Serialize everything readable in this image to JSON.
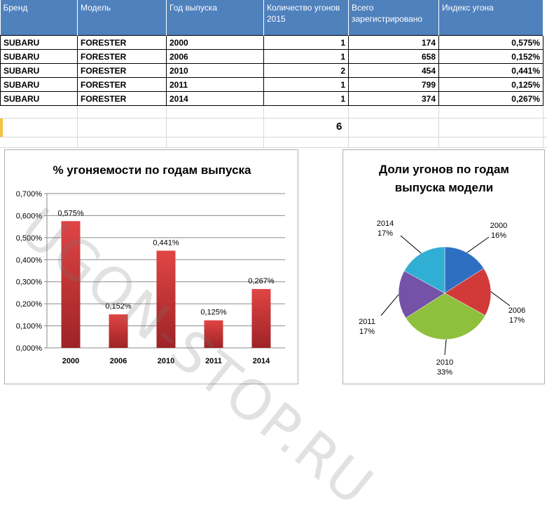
{
  "table": {
    "headers": [
      "Бренд",
      "Модель",
      "Год выпуска",
      "Количество угонов 2015",
      "Всего зарегистрировано",
      "Индекс угона"
    ],
    "rows": [
      [
        "SUBARU",
        "FORESTER",
        "2000",
        "1",
        "174",
        "0,575%"
      ],
      [
        "SUBARU",
        "FORESTER",
        "2006",
        "1",
        "658",
        "0,152%"
      ],
      [
        "SUBARU",
        "FORESTER",
        "2010",
        "2",
        "454",
        "0,441%"
      ],
      [
        "SUBARU",
        "FORESTER",
        "2011",
        "1",
        "799",
        "0,125%"
      ],
      [
        "SUBARU",
        "FORESTER",
        "2014",
        "1",
        "374",
        "0,267%"
      ]
    ],
    "total": "6"
  },
  "watermark": "UGON-STOP.RU",
  "chart_data": [
    {
      "type": "bar",
      "title": "% угоняемости  по годам  выпуска",
      "categories": [
        "2000",
        "2006",
        "2010",
        "2011",
        "2014"
      ],
      "values": [
        0.575,
        0.152,
        0.441,
        0.125,
        0.267
      ],
      "labels": [
        "0,575%",
        "0,152%",
        "0,441%",
        "0,125%",
        "0,267%"
      ],
      "ylim": [
        0,
        0.7
      ],
      "yticks": [
        "0,000%",
        "0,100%",
        "0,200%",
        "0,300%",
        "0,400%",
        "0,500%",
        "0,600%",
        "0,700%"
      ],
      "grid": true,
      "color": "#c0393b"
    },
    {
      "type": "pie",
      "title": "Доли угонов  по годам выпуска модели",
      "title_lines": [
        "Доли угонов  по годам",
        "выпуска  модели"
      ],
      "categories": [
        "2000",
        "2006",
        "2010",
        "2011",
        "2014"
      ],
      "values": [
        16,
        17,
        33,
        17,
        17
      ],
      "labels": [
        "16%",
        "17%",
        "33%",
        "17%",
        "17%"
      ],
      "colors": [
        "#2f6fc2",
        "#d23a3a",
        "#8ec03d",
        "#7452a8",
        "#31aed3"
      ]
    }
  ]
}
